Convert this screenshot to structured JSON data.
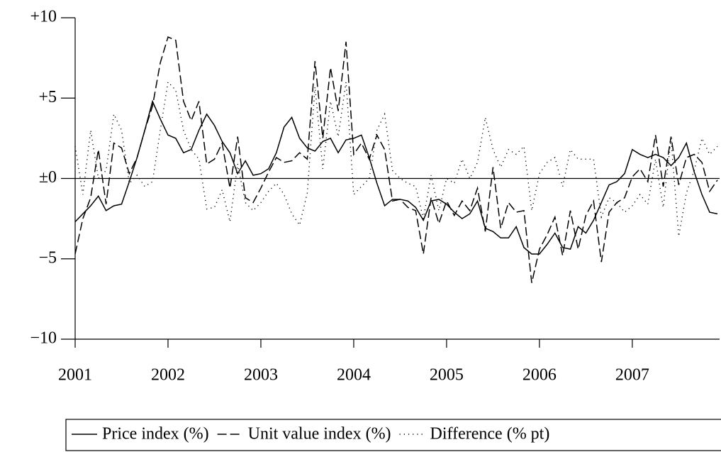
{
  "chart_data": {
    "type": "line",
    "x": [
      2001,
      2001.083,
      2001.167,
      2001.25,
      2001.333,
      2001.417,
      2001.5,
      2001.583,
      2001.667,
      2001.75,
      2001.833,
      2001.917,
      2002,
      2002.083,
      2002.167,
      2002.25,
      2002.333,
      2002.417,
      2002.5,
      2002.583,
      2002.667,
      2002.75,
      2002.833,
      2002.917,
      2003,
      2003.083,
      2003.167,
      2003.25,
      2003.333,
      2003.417,
      2003.5,
      2003.583,
      2003.667,
      2003.75,
      2003.833,
      2003.917,
      2004,
      2004.083,
      2004.167,
      2004.25,
      2004.333,
      2004.417,
      2004.5,
      2004.583,
      2004.667,
      2004.75,
      2004.833,
      2004.917,
      2005,
      2005.083,
      2005.167,
      2005.25,
      2005.333,
      2005.417,
      2005.5,
      2005.583,
      2005.667,
      2005.75,
      2005.833,
      2005.917,
      2006,
      2006.083,
      2006.167,
      2006.25,
      2006.333,
      2006.417,
      2006.5,
      2006.583,
      2006.667,
      2006.75,
      2006.833,
      2006.917,
      2007,
      2007.083,
      2007.167,
      2007.25,
      2007.333,
      2007.417,
      2007.5,
      2007.583,
      2007.667,
      2007.75,
      2007.833,
      2007.917
    ],
    "series": [
      {
        "name": "Price index (%)",
        "color": "#000000",
        "dash": "solid",
        "values": [
          -2.7,
          -2.2,
          -1.7,
          -1.1,
          -2.0,
          -1.7,
          -1.6,
          -0.2,
          1.3,
          3.0,
          4.8,
          3.7,
          2.7,
          2.5,
          1.6,
          1.8,
          3.0,
          4.0,
          3.3,
          2.3,
          1.6,
          0.3,
          1.1,
          0.2,
          0.3,
          0.6,
          1.6,
          3.2,
          3.8,
          2.5,
          1.9,
          1.7,
          2.3,
          2.5,
          1.6,
          2.4,
          2.5,
          2.7,
          1.3,
          -0.3,
          -1.7,
          -1.3,
          -1.3,
          -1.4,
          -1.8,
          -2.6,
          -1.4,
          -1.3,
          -1.6,
          -2.1,
          -2.5,
          -2.2,
          -1.4,
          -3.1,
          -3.3,
          -3.7,
          -3.7,
          -3.0,
          -4.3,
          -4.7,
          -4.7,
          -4.1,
          -3.4,
          -4.3,
          -4.4,
          -3.0,
          -3.4,
          -2.6,
          -1.5,
          -0.4,
          -0.2,
          0.3,
          1.8,
          1.5,
          1.3,
          1.5,
          1.3,
          0.8,
          1.3,
          2.2,
          0.4,
          -1.0,
          -2.1,
          -2.2
        ]
      },
      {
        "name": "Unit value index (%)",
        "color": "#000000",
        "dash": "dashed",
        "values": [
          -4.7,
          -2.5,
          -1.2,
          1.8,
          -1.6,
          2.2,
          1.9,
          0.3,
          1.3,
          3.0,
          4.5,
          7.2,
          8.8,
          8.6,
          4.8,
          3.6,
          4.8,
          0.9,
          1.2,
          2.2,
          -0.6,
          2.6,
          -1.2,
          -1.5,
          -0.6,
          0.4,
          1.3,
          1.0,
          1.1,
          1.6,
          1.2,
          7.3,
          2.5,
          6.9,
          4.2,
          8.5,
          1.5,
          2.2,
          1.2,
          2.7,
          1.8,
          -1.4,
          -1.3,
          -1.8,
          -2.0,
          -4.7,
          -1.2,
          -2.8,
          -1.4,
          -2.3,
          -1.4,
          -2.0,
          -0.6,
          -3.3,
          0.7,
          -3.1,
          -1.5,
          -2.1,
          -2.0,
          -6.5,
          -4.4,
          -3.5,
          -2.4,
          -4.8,
          -2.0,
          -4.4,
          -2.3,
          -1.4,
          -5.2,
          -2.1,
          -1.5,
          -1.2,
          0.1,
          0.6,
          -0.2,
          2.7,
          -0.5,
          2.6,
          -0.4,
          1.3,
          1.5,
          1.0,
          -0.8,
          -0.1
        ]
      },
      {
        "name": "Difference (% pt)",
        "color": "#000000",
        "dash": "dotted",
        "values": [
          2.0,
          -1.0,
          3.0,
          0.0,
          0.5,
          4.0,
          3.0,
          -0.3,
          0.2,
          -0.5,
          -0.2,
          3.0,
          6.0,
          5.5,
          3.0,
          1.8,
          1.2,
          -1.9,
          -1.8,
          -0.7,
          -2.7,
          0.9,
          -1.5,
          -2.0,
          -1.5,
          -0.8,
          -0.3,
          -1.0,
          -2.2,
          -2.9,
          -0.9,
          5.7,
          0.6,
          4.8,
          2.6,
          6.0,
          -1.0,
          -0.5,
          0.0,
          3.0,
          4.0,
          0.5,
          0.0,
          -0.3,
          -0.5,
          -2.5,
          0.2,
          -2.0,
          0.0,
          -0.3,
          1.2,
          0.0,
          1.0,
          3.8,
          1.8,
          0.7,
          1.8,
          1.5,
          2.0,
          -2.0,
          0.3,
          1.0,
          1.3,
          -0.5,
          1.8,
          1.2,
          1.2,
          1.2,
          -2.4,
          -1.2,
          -1.5,
          -2.1,
          -1.7,
          -1.0,
          -1.6,
          1.2,
          -1.8,
          2.5,
          -3.6,
          -0.9,
          0.5,
          2.5,
          1.5,
          2.0
        ]
      }
    ],
    "xlim": [
      2001,
      2007.94
    ],
    "xticks": [
      2001,
      2002,
      2003,
      2004,
      2005,
      2006,
      2007
    ],
    "ylim": [
      -10,
      10
    ],
    "yticks": [
      {
        "value": -10,
        "label": "−10"
      },
      {
        "value": -5,
        "label": "−5"
      },
      {
        "value": 0,
        "label": "±0"
      },
      {
        "value": 5,
        "label": "+5"
      },
      {
        "value": 10,
        "label": "+10"
      }
    ],
    "zero_line": true,
    "legend": "bottom"
  }
}
